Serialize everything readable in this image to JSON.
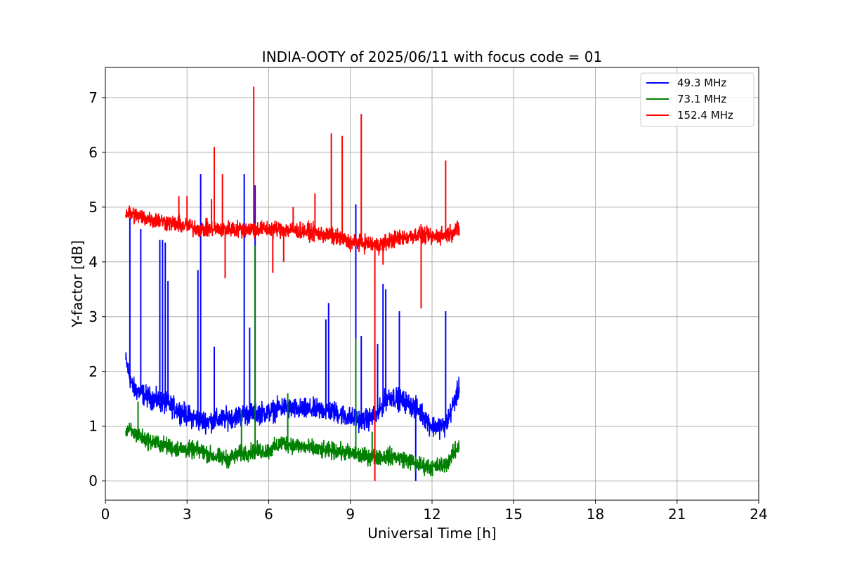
{
  "chart_data": {
    "type": "line",
    "title": "INDIA-OOTY of 2025/06/11 with focus code = 01",
    "xlabel": "Universal Time [h]",
    "ylabel": "Y-factor [dB]",
    "xlim": [
      0,
      24
    ],
    "ylim": [
      -0.35,
      7.55
    ],
    "xticks": [
      0,
      3,
      6,
      9,
      12,
      15,
      18,
      21,
      24
    ],
    "xtick_labels": [
      "0",
      "3",
      "6",
      "9",
      "12",
      "15",
      "18",
      "21",
      "24"
    ],
    "yticks": [
      0,
      1,
      2,
      3,
      4,
      5,
      6,
      7
    ],
    "ytick_labels": [
      "0",
      "1",
      "2",
      "3",
      "4",
      "5",
      "6",
      "7"
    ],
    "grid": true,
    "legend_position": "top-right",
    "series": [
      {
        "name": "  49.3 MHz",
        "color": "#0000ff",
        "x": [
          0.75,
          1.0,
          1.5,
          2.0,
          2.5,
          3.0,
          3.5,
          4.0,
          4.5,
          5.0,
          5.5,
          6.0,
          6.5,
          7.0,
          7.5,
          8.0,
          8.5,
          9.0,
          9.5,
          10.0,
          10.3,
          10.5,
          11.0,
          11.5,
          12.0,
          12.5,
          13.0
        ],
        "values": [
          2.2,
          1.7,
          1.55,
          1.45,
          1.35,
          1.2,
          1.1,
          1.1,
          1.15,
          1.2,
          1.25,
          1.25,
          1.35,
          1.3,
          1.3,
          1.3,
          1.25,
          1.15,
          1.1,
          1.2,
          1.5,
          1.55,
          1.45,
          1.3,
          1.0,
          1.0,
          1.7
        ],
        "noise": 0.15,
        "spikes": [
          [
            0.9,
            4.8
          ],
          [
            1.3,
            4.6
          ],
          [
            2.0,
            4.4
          ],
          [
            2.1,
            4.4
          ],
          [
            2.2,
            4.35
          ],
          [
            2.3,
            3.65
          ],
          [
            3.4,
            3.85
          ],
          [
            3.5,
            5.6
          ],
          [
            4.0,
            2.45
          ],
          [
            5.1,
            5.6
          ],
          [
            5.3,
            2.8
          ],
          [
            5.5,
            5.4
          ],
          [
            8.1,
            2.95
          ],
          [
            8.2,
            3.25
          ],
          [
            9.2,
            5.05
          ],
          [
            9.4,
            2.65
          ],
          [
            10.0,
            2.5
          ],
          [
            10.2,
            3.6
          ],
          [
            10.3,
            3.5
          ],
          [
            10.8,
            3.1
          ],
          [
            11.4,
            0.0
          ],
          [
            12.5,
            3.1
          ]
        ]
      },
      {
        "name": "  73.1 MHz",
        "color": "#008000",
        "x": [
          0.75,
          1.5,
          2.5,
          3.5,
          4.0,
          4.5,
          5.0,
          5.5,
          6.0,
          6.5,
          7.0,
          7.5,
          8.0,
          8.5,
          9.0,
          9.5,
          10.0,
          10.5,
          11.0,
          11.5,
          12.0,
          12.5,
          13.0
        ],
        "values": [
          0.95,
          0.75,
          0.6,
          0.55,
          0.45,
          0.4,
          0.5,
          0.55,
          0.55,
          0.7,
          0.65,
          0.6,
          0.55,
          0.55,
          0.5,
          0.45,
          0.45,
          0.45,
          0.4,
          0.3,
          0.25,
          0.3,
          0.65
        ],
        "noise": 0.12,
        "spikes": [
          [
            1.2,
            1.45
          ],
          [
            5.0,
            1.3
          ],
          [
            5.5,
            4.3
          ],
          [
            6.7,
            1.6
          ],
          [
            9.2,
            2.6
          ],
          [
            9.8,
            0.9
          ]
        ]
      },
      {
        "name": " 152.4 MHz",
        "color": "#ff0000",
        "x": [
          0.75,
          1.5,
          2.5,
          3.5,
          4.5,
          5.5,
          6.5,
          7.5,
          8.5,
          9.0,
          9.5,
          10.0,
          10.5,
          11.0,
          11.5,
          12.0,
          12.5,
          13.0
        ],
        "values": [
          4.9,
          4.8,
          4.7,
          4.6,
          4.6,
          4.6,
          4.6,
          4.55,
          4.45,
          4.35,
          4.35,
          4.3,
          4.4,
          4.45,
          4.5,
          4.45,
          4.5,
          4.6
        ],
        "noise": 0.12,
        "spikes": [
          [
            2.7,
            5.2
          ],
          [
            3.0,
            5.2
          ],
          [
            3.9,
            5.15
          ],
          [
            4.0,
            6.1
          ],
          [
            4.3,
            5.6
          ],
          [
            4.4,
            3.7
          ],
          [
            5.45,
            7.2
          ],
          [
            6.15,
            3.8
          ],
          [
            6.55,
            4.0
          ],
          [
            6.9,
            5.0
          ],
          [
            7.7,
            5.25
          ],
          [
            8.3,
            6.35
          ],
          [
            8.7,
            6.3
          ],
          [
            9.4,
            6.7
          ],
          [
            9.9,
            0.0
          ],
          [
            10.2,
            3.95
          ],
          [
            11.6,
            3.15
          ],
          [
            12.5,
            5.85
          ]
        ]
      }
    ]
  }
}
